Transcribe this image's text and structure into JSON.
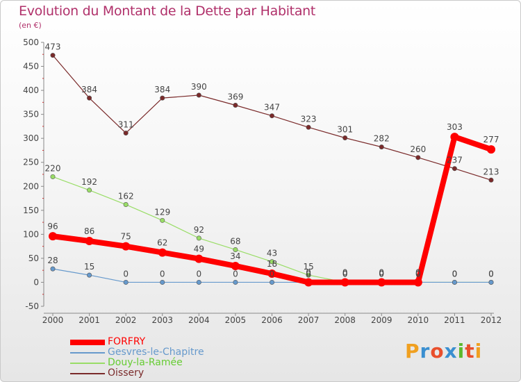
{
  "header": {
    "title": "Evolution du Montant de la Dette par Habitant",
    "subtitle": "(en €)"
  },
  "logo": {
    "text": "Proxiti",
    "letters": [
      {
        "ch": "P",
        "color": "#f0a020"
      },
      {
        "ch": "r",
        "color": "#3a8fd0"
      },
      {
        "ch": "o",
        "color": "#e94f2c"
      },
      {
        "ch": "x",
        "color": "#3a8fd0"
      },
      {
        "ch": "i",
        "color": "#5cb82e"
      },
      {
        "ch": "t",
        "color": "#e94f2c"
      },
      {
        "ch": "i",
        "color": "#f0a020"
      }
    ]
  },
  "chart_data": {
    "type": "line",
    "title": "Evolution du Montant de la Dette par Habitant",
    "ylabel": "(en €)",
    "xlabel": "",
    "x": [
      "2000",
      "2001",
      "2002",
      "2003",
      "2004",
      "2005",
      "2006",
      "2007",
      "2008",
      "2009",
      "2010",
      "2011",
      "2012"
    ],
    "ylim": [
      -50,
      500
    ],
    "yticks": [
      -50,
      0,
      50,
      100,
      150,
      200,
      250,
      300,
      350,
      400,
      450,
      500
    ],
    "grid": false,
    "legend_position": "bottom-left",
    "series": [
      {
        "name": "FORFRY",
        "color": "#ff0000",
        "emphasis": true,
        "values": [
          96,
          86,
          75,
          62,
          49,
          34,
          18,
          0,
          0,
          0,
          0,
          303,
          277
        ]
      },
      {
        "name": "Gesvres-le-Chapitre",
        "color": "#6699cc",
        "emphasis": false,
        "values": [
          28,
          15,
          0,
          0,
          0,
          0,
          0,
          0,
          0,
          0,
          0,
          0,
          0
        ]
      },
      {
        "name": "Douy-la-Ramée",
        "color": "#99dd66",
        "emphasis": false,
        "values": [
          220,
          192,
          162,
          129,
          92,
          68,
          43,
          15,
          0,
          0,
          0,
          0,
          0
        ]
      },
      {
        "name": "Oissery",
        "color": "#7a2a2a",
        "emphasis": false,
        "values": [
          473,
          384,
          311,
          384,
          390,
          369,
          347,
          323,
          301,
          282,
          260,
          237,
          213
        ]
      }
    ],
    "legend_label_colors": {
      "FORFRY": "#ff0000",
      "Gesvres-le-Chapitre": "#6699cc",
      "Douy-la-Ramée": "#66cc33",
      "Oissery": "#7a2a2a"
    }
  }
}
